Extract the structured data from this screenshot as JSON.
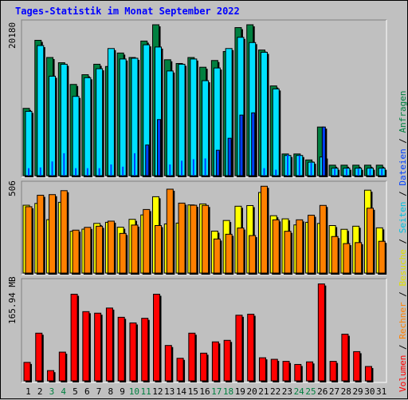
{
  "title": "Tages-Statistik im Monat September 2022",
  "legend": {
    "volumen": "Volumen",
    "rechner": "Rechner",
    "besuche": "Besuche",
    "seiten": "Seiten",
    "dateien": "Dateien",
    "anfragen": "Anfragen",
    "separator": " / "
  },
  "colors": {
    "anfragen": "#008040",
    "dateien": "#0040ff",
    "seiten": "#00e0ff",
    "besuche": "#ffff00",
    "rechner": "#ff8000",
    "volumen": "#ff0000",
    "weekend_label": "#008040",
    "weekday_label": "#000000",
    "background": "#c0c0c0"
  },
  "chart_data": [
    {
      "type": "bar",
      "panel": "top",
      "y_tick_label": "20180",
      "y_max": 20180,
      "categories": [
        "1",
        "2",
        "3",
        "4",
        "5",
        "6",
        "7",
        "8",
        "9",
        "10",
        "11",
        "12",
        "13",
        "14",
        "15",
        "16",
        "17",
        "18",
        "19",
        "20",
        "21",
        "22",
        "23",
        "24",
        "25",
        "26",
        "27",
        "28",
        "29",
        "30",
        "31"
      ],
      "weekend_days": [
        3,
        4,
        10,
        11,
        17,
        18,
        24,
        25
      ],
      "series": [
        {
          "name": "Anfragen",
          "values": [
            9000,
            18100,
            15800,
            15100,
            12200,
            13500,
            14900,
            14600,
            16400,
            15800,
            18000,
            20180,
            15500,
            15000,
            15800,
            14500,
            15400,
            16600,
            19800,
            20180,
            16800,
            12000,
            2900,
            2900,
            2100,
            6500,
            1400,
            1400,
            1400,
            1400,
            1400
          ]
        },
        {
          "name": "Seiten",
          "values": [
            8600,
            17400,
            13300,
            14900,
            10600,
            13100,
            14300,
            17000,
            15600,
            15700,
            17500,
            17200,
            14000,
            14900,
            15600,
            12700,
            14400,
            17000,
            18500,
            17800,
            16500,
            11600,
            2700,
            2700,
            1800,
            2500,
            1000,
            1000,
            1000,
            1000,
            1000
          ]
        },
        {
          "name": "Dateien",
          "values": [
            1000,
            1100,
            1900,
            3000,
            1000,
            1000,
            1000,
            1500,
            1200,
            3000,
            4100,
            7500,
            1500,
            2000,
            2200,
            2300,
            3400,
            5000,
            8100,
            8400,
            1000,
            800,
            2800,
            2700,
            1700,
            6500,
            900,
            900,
            900,
            900,
            900
          ]
        }
      ]
    },
    {
      "type": "bar",
      "panel": "middle",
      "y_tick_label": "506",
      "y_max": 506,
      "categories": [
        "1",
        "2",
        "3",
        "4",
        "5",
        "6",
        "7",
        "8",
        "9",
        "10",
        "11",
        "12",
        "13",
        "14",
        "15",
        "16",
        "17",
        "18",
        "19",
        "20",
        "21",
        "22",
        "23",
        "24",
        "25",
        "26",
        "27",
        "28",
        "29",
        "30",
        "31"
      ],
      "series": [
        {
          "name": "Besuche",
          "values": [
            414,
            425,
            326,
            432,
            255,
            268,
            303,
            310,
            280,
            328,
            355,
            466,
            300,
            305,
            416,
            422,
            256,
            321,
            408,
            412,
            492,
            350,
            331,
            294,
            310,
            303,
            290,
            267,
            286,
            506,
            276
          ]
        },
        {
          "name": "Rechner",
          "values": [
            405,
            475,
            479,
            503,
            262,
            279,
            286,
            317,
            242,
            293,
            388,
            290,
            512,
            427,
            414,
            413,
            208,
            237,
            275,
            229,
            530,
            325,
            255,
            325,
            353,
            413,
            223,
            180,
            186,
            396,
            194
          ]
        }
      ]
    },
    {
      "type": "bar",
      "panel": "bottom",
      "y_tick_label": "165.94 MB",
      "y_max": 165.94,
      "unit": "MB",
      "categories": [
        "1",
        "2",
        "3",
        "4",
        "5",
        "6",
        "7",
        "8",
        "9",
        "10",
        "11",
        "12",
        "13",
        "14",
        "15",
        "16",
        "17",
        "18",
        "19",
        "20",
        "21",
        "22",
        "23",
        "24",
        "25",
        "26",
        "27",
        "28",
        "29",
        "30",
        "31"
      ],
      "series": [
        {
          "name": "Volumen",
          "values": [
            36,
            93,
            20,
            56,
            169,
            135,
            132,
            142,
            124,
            113,
            122,
            169,
            69,
            44,
            93,
            54,
            76,
            79,
            128,
            130,
            45,
            42,
            38,
            32,
            37,
            189,
            38,
            91,
            57,
            28,
            0
          ]
        }
      ]
    }
  ]
}
